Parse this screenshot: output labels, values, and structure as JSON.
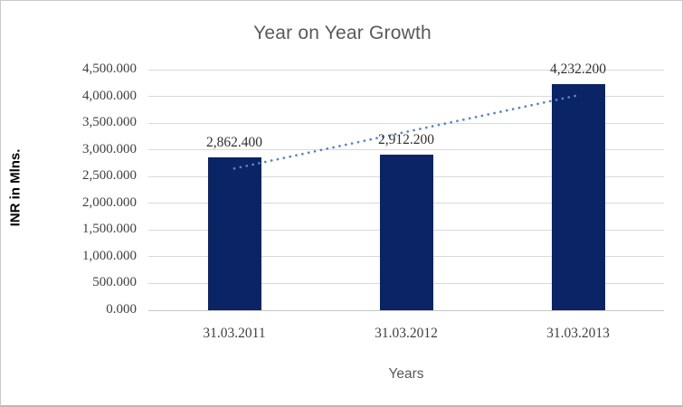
{
  "window": {
    "background": "#ffffff",
    "border_color": "#c9c9c9"
  },
  "chart_data": {
    "type": "bar",
    "title": "Year on Year Growth",
    "xlabel": "Years",
    "ylabel": "INR in Mlns.",
    "categories": [
      "31.03.2011",
      "31.03.2012",
      "31.03.2013"
    ],
    "values": [
      2862.4,
      2912.2,
      4232.2
    ],
    "data_labels": [
      "2,862.400",
      "2,912.200",
      "4,232.200"
    ],
    "ylim": [
      0,
      4500
    ],
    "ytick_step": 500,
    "ytick_labels": [
      "0.000",
      "500.000",
      "1,000.000",
      "1,500.000",
      "2,000.000",
      "2,500.000",
      "3,000.000",
      "3,500.000",
      "4,000.000",
      "4,500.000"
    ],
    "grid": true,
    "legend": "none",
    "trendline": {
      "type": "linear",
      "style": "dotted",
      "color": "#5586cb"
    },
    "colors": {
      "bar": "#0b2465",
      "gridline": "#d9d9d9",
      "axis_line": "#c6c6c6",
      "title_text": "#595959",
      "tick_text": "#404040",
      "data_label_text": "#303030",
      "axis_title_text": "#595959",
      "y_axis_title_text": "#000000"
    }
  }
}
